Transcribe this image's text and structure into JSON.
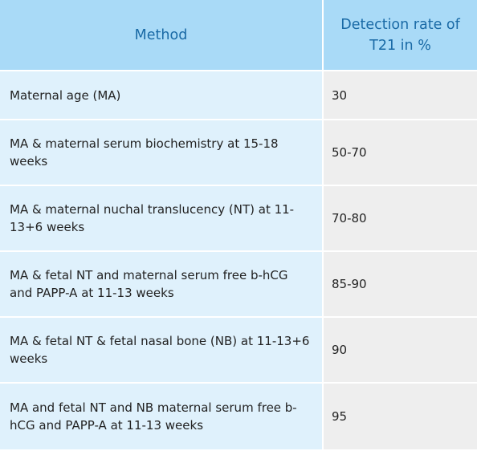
{
  "table": {
    "headers": [
      "Method",
      "Detection rate of T21 in %"
    ],
    "rows": [
      {
        "method": "Maternal age (MA)",
        "rate": "30"
      },
      {
        "method": "MA & maternal serum biochemistry at 15-18 weeks",
        "rate": "50-70"
      },
      {
        "method": "MA & maternal nuchal translucency (NT) at 11-13+6 weeks",
        "rate": "70-80"
      },
      {
        "method": "MA & fetal NT and maternal serum free b-hCG and PAPP-A at 11-13 weeks",
        "rate": "85-90"
      },
      {
        "method": "MA & fetal NT & fetal nasal bone (NB) at 11-13+6 weeks",
        "rate": "90"
      },
      {
        "method": "MA and fetal NT and NB maternal serum free b-hCG and PAPP-A at 11-13 weeks",
        "rate": "95"
      }
    ]
  }
}
